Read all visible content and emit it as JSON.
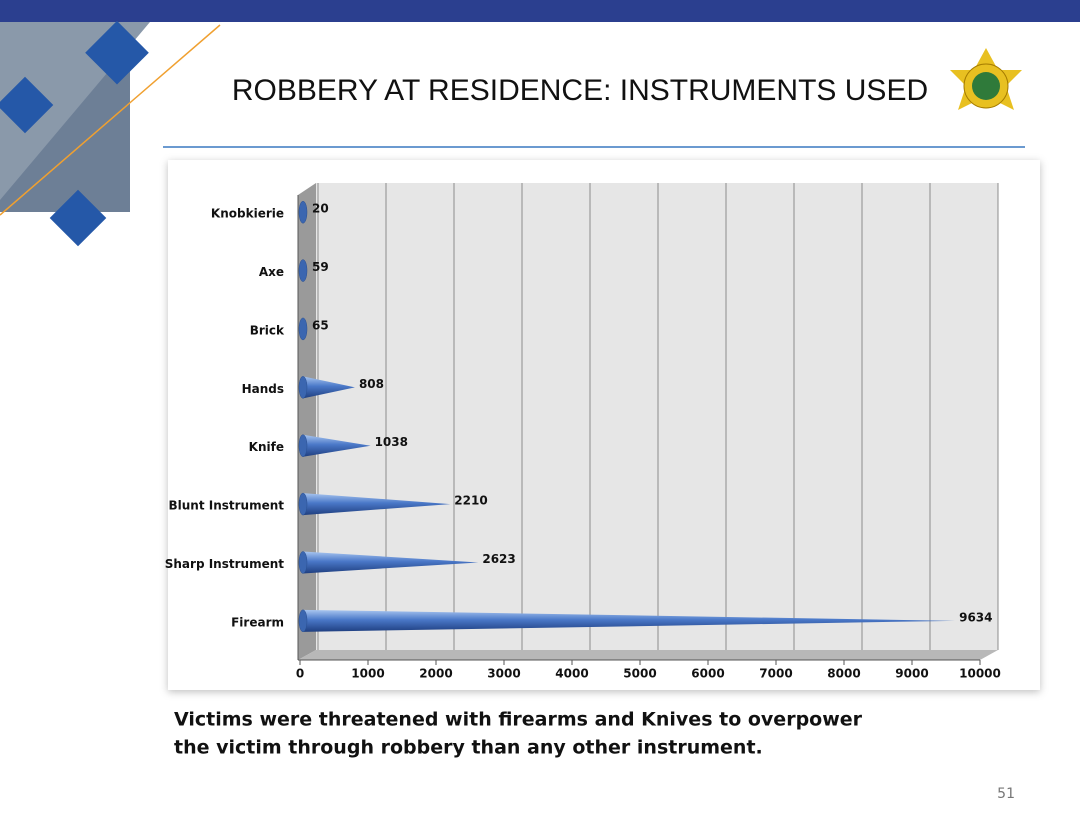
{
  "chart_data": {
    "type": "cone-bar",
    "orientation": "horizontal",
    "title": "ROBBERY AT RESIDENCE: INSTRUMENTS USED",
    "categories": [
      "Knobkierie",
      "Axe",
      "Brick",
      "Hands",
      "Knife",
      "Blunt Instrument",
      "Sharp Instrument",
      "Firearm"
    ],
    "values": [
      20,
      59,
      65,
      808,
      1038,
      2210,
      2623,
      9634
    ],
    "color": "#4a78c8",
    "xlim": [
      0,
      10000
    ],
    "xticks": [
      0,
      1000,
      2000,
      3000,
      4000,
      5000,
      6000,
      7000,
      8000,
      9000,
      10000
    ],
    "grid": true
  },
  "caption": [
    "Victims were threatened with firearms and Knives to overpower",
    "the victim through robbery than any other instrument."
  ],
  "page_number": "51"
}
